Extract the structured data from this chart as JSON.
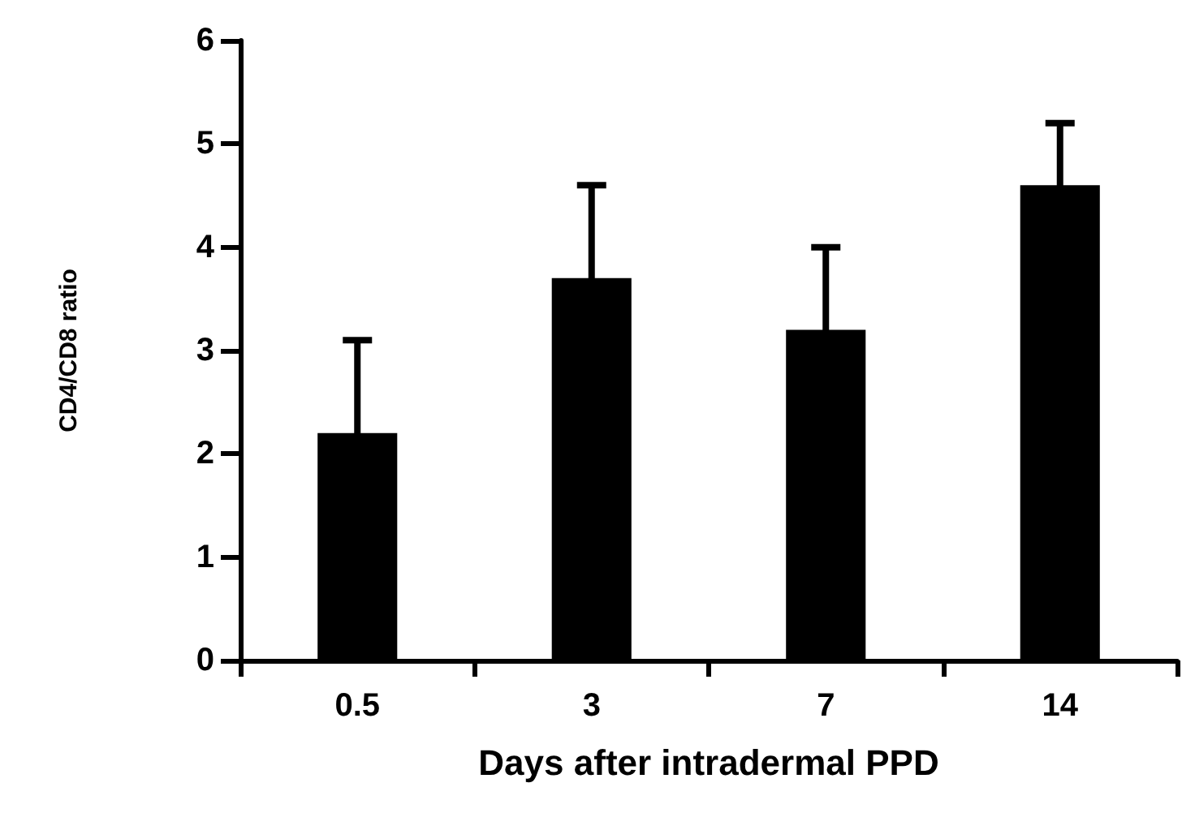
{
  "chart_data": {
    "type": "bar",
    "xlabel": "Days after intradermal PPD",
    "ylabel": "CD4/CD8 ratio",
    "categories": [
      "0.5",
      "3",
      "7",
      "14"
    ],
    "values": [
      2.2,
      3.7,
      3.2,
      4.6
    ],
    "errors": [
      0.9,
      0.9,
      0.8,
      0.6
    ],
    "color": "#000000",
    "ylim": [
      0,
      6
    ],
    "yticks": [
      0,
      1,
      2,
      3,
      4,
      5,
      6
    ],
    "grid": false
  }
}
